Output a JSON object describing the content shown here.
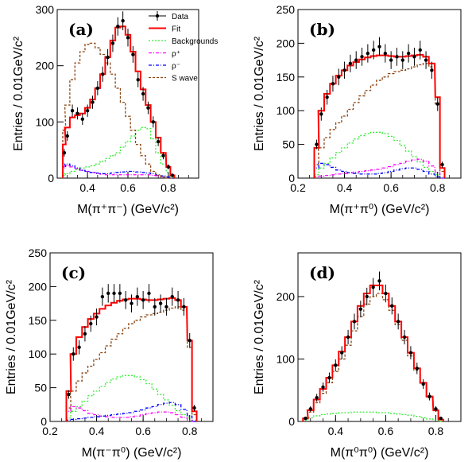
{
  "colors": {
    "data": "#000000",
    "fit": "#ff0000",
    "backgrounds": "#33ee33",
    "rho_plus": "#ff00ff",
    "rho_minus": "#0000ff",
    "s_wave": "#8b4513"
  },
  "chart_data": [
    {
      "type": "line",
      "panel_label": "(a)",
      "xlabel": "M(π⁺π⁻) (GeV/c²)",
      "ylabel": "Entries / 0.01GeV/c²",
      "xlim": [
        0.25,
        0.95
      ],
      "ylim": [
        0,
        300
      ],
      "xticks": [
        0.4,
        0.6,
        0.8
      ],
      "yticks": [
        0,
        100,
        200,
        300
      ],
      "grid": false,
      "legend": {
        "position": "top-right",
        "entries": [
          "Data",
          "Fit",
          "Backgrounds",
          "ρ⁺",
          "ρ⁻",
          "S wave"
        ]
      },
      "x": [
        0.285,
        0.3,
        0.325,
        0.35,
        0.375,
        0.4,
        0.425,
        0.45,
        0.475,
        0.5,
        0.525,
        0.55,
        0.575,
        0.6,
        0.625,
        0.65,
        0.675,
        0.7,
        0.725,
        0.75,
        0.775,
        0.8,
        0.82
      ],
      "series": [
        {
          "name": "Data",
          "values": [
            45,
            75,
            120,
            115,
            105,
            120,
            135,
            160,
            185,
            215,
            240,
            270,
            280,
            250,
            220,
            175,
            150,
            125,
            100,
            65,
            40,
            20,
            5
          ]
        },
        {
          "name": "Fit",
          "values": [
            60,
            90,
            108,
            112,
            115,
            125,
            140,
            160,
            185,
            215,
            245,
            268,
            270,
            255,
            225,
            190,
            158,
            130,
            100,
            72,
            45,
            20,
            5
          ]
        },
        {
          "name": "Backgrounds",
          "values": [
            5,
            8,
            12,
            15,
            18,
            20,
            22,
            25,
            30,
            35,
            40,
            45,
            55,
            65,
            75,
            85,
            90,
            88,
            70,
            45,
            25,
            10,
            2
          ]
        },
        {
          "name": "ρ⁺",
          "values": [
            18,
            22,
            20,
            17,
            14,
            12,
            10,
            8,
            7,
            6,
            6,
            6,
            6,
            6,
            6,
            6,
            6,
            6,
            5,
            4,
            3,
            2,
            0
          ]
        },
        {
          "name": "ρ⁻",
          "values": [
            20,
            25,
            22,
            18,
            14,
            12,
            10,
            9,
            8,
            8,
            9,
            10,
            11,
            12,
            12,
            11,
            10,
            9,
            8,
            6,
            4,
            2,
            0
          ]
        },
        {
          "name": "S wave",
          "values": [
            85,
            130,
            175,
            205,
            225,
            238,
            240,
            232,
            220,
            205,
            185,
            160,
            135,
            110,
            85,
            60,
            40,
            25,
            12,
            5,
            2,
            0,
            0
          ]
        }
      ]
    },
    {
      "type": "line",
      "panel_label": "(b)",
      "xlabel": "M(π⁺π⁰) (GeV/c²)",
      "ylabel": "Entries / 0.01GeV/c²",
      "xlim": [
        0.2,
        0.9
      ],
      "ylim": [
        0,
        250
      ],
      "xticks": [
        0.2,
        0.4,
        0.6,
        0.8
      ],
      "yticks": [
        0,
        50,
        100,
        150,
        200,
        250
      ],
      "grid": false,
      "x": [
        0.28,
        0.3,
        0.325,
        0.35,
        0.375,
        0.4,
        0.425,
        0.45,
        0.475,
        0.5,
        0.525,
        0.55,
        0.575,
        0.6,
        0.625,
        0.65,
        0.675,
        0.7,
        0.725,
        0.75,
        0.775,
        0.8,
        0.82
      ],
      "series": [
        {
          "name": "Data",
          "values": [
            50,
            95,
            120,
            140,
            150,
            160,
            170,
            175,
            180,
            185,
            190,
            195,
            185,
            175,
            180,
            175,
            185,
            180,
            190,
            175,
            160,
            110,
            20
          ]
        },
        {
          "name": "Fit",
          "values": [
            45,
            100,
            125,
            140,
            152,
            160,
            167,
            172,
            176,
            179,
            181,
            182,
            182,
            181,
            180,
            180,
            181,
            182,
            183,
            180,
            170,
            120,
            15
          ]
        },
        {
          "name": "Backgrounds",
          "values": [
            5,
            15,
            22,
            30,
            38,
            45,
            52,
            58,
            63,
            66,
            68,
            68,
            66,
            62,
            56,
            48,
            40,
            32,
            24,
            16,
            10,
            5,
            1
          ]
        },
        {
          "name": "ρ⁺",
          "values": [
            2,
            3,
            4,
            5,
            6,
            7,
            8,
            9,
            10,
            11,
            12,
            13,
            15,
            17,
            20,
            22,
            25,
            27,
            28,
            25,
            18,
            8,
            0
          ]
        },
        {
          "name": "ρ⁻",
          "values": [
            15,
            22,
            20,
            16,
            12,
            10,
            8,
            7,
            6,
            6,
            6,
            7,
            8,
            10,
            12,
            14,
            15,
            15,
            13,
            10,
            6,
            2,
            0
          ]
        },
        {
          "name": "S wave",
          "values": [
            20,
            45,
            60,
            72,
            82,
            92,
            102,
            112,
            122,
            130,
            138,
            145,
            150,
            155,
            158,
            160,
            162,
            165,
            168,
            170,
            165,
            110,
            10
          ]
        }
      ]
    },
    {
      "type": "line",
      "panel_label": "(c)",
      "xlabel": "M(π⁻π⁰) (GeV/c²)",
      "ylabel": "Entries / 0.01GeV/c²",
      "xlim": [
        0.2,
        0.9
      ],
      "ylim": [
        0,
        250
      ],
      "xticks": [
        0.2,
        0.4,
        0.6,
        0.8
      ],
      "yticks": [
        0,
        50,
        100,
        150,
        200,
        250
      ],
      "grid": false,
      "x": [
        0.28,
        0.3,
        0.325,
        0.35,
        0.375,
        0.4,
        0.425,
        0.45,
        0.475,
        0.5,
        0.525,
        0.55,
        0.575,
        0.6,
        0.625,
        0.65,
        0.675,
        0.7,
        0.725,
        0.75,
        0.775,
        0.8,
        0.82
      ],
      "series": [
        {
          "name": "Data",
          "values": [
            40,
            100,
            110,
            130,
            145,
            155,
            185,
            190,
            190,
            190,
            180,
            175,
            185,
            180,
            190,
            170,
            175,
            170,
            185,
            180,
            170,
            120,
            20
          ]
        },
        {
          "name": "Fit",
          "values": [
            45,
            100,
            125,
            140,
            152,
            160,
            167,
            172,
            176,
            179,
            181,
            182,
            182,
            181,
            180,
            180,
            181,
            182,
            183,
            180,
            170,
            120,
            15
          ]
        },
        {
          "name": "Backgrounds",
          "values": [
            5,
            15,
            22,
            30,
            38,
            45,
            52,
            58,
            63,
            66,
            68,
            68,
            66,
            62,
            56,
            48,
            40,
            32,
            24,
            16,
            10,
            5,
            1
          ]
        },
        {
          "name": "ρ⁺",
          "values": [
            15,
            22,
            20,
            16,
            12,
            10,
            8,
            7,
            6,
            6,
            6,
            7,
            8,
            10,
            12,
            13,
            14,
            14,
            13,
            10,
            6,
            2,
            0
          ]
        },
        {
          "name": "ρ⁻",
          "values": [
            2,
            3,
            4,
            5,
            6,
            7,
            8,
            9,
            10,
            11,
            12,
            13,
            15,
            17,
            20,
            22,
            25,
            27,
            28,
            25,
            18,
            8,
            0
          ]
        },
        {
          "name": "S wave",
          "values": [
            20,
            45,
            60,
            72,
            82,
            92,
            102,
            112,
            122,
            130,
            138,
            145,
            150,
            155,
            158,
            160,
            162,
            165,
            168,
            170,
            165,
            110,
            10
          ]
        }
      ]
    },
    {
      "type": "line",
      "panel_label": "(d)",
      "xlabel": "M(π⁰π⁰) (GeV/c²)",
      "ylabel": "Entries / 0.01GeV/c²",
      "xlim": [
        0.25,
        0.9
      ],
      "ylim": [
        0,
        270
      ],
      "xticks": [
        0.4,
        0.6,
        0.8
      ],
      "yticks": [
        0,
        100,
        200
      ],
      "grid": false,
      "x": [
        0.28,
        0.3,
        0.325,
        0.35,
        0.375,
        0.4,
        0.425,
        0.45,
        0.475,
        0.5,
        0.525,
        0.55,
        0.575,
        0.6,
        0.625,
        0.65,
        0.675,
        0.7,
        0.725,
        0.75,
        0.775,
        0.8,
        0.82
      ],
      "series": [
        {
          "name": "Data",
          "values": [
            5,
            20,
            38,
            55,
            70,
            90,
            110,
            135,
            160,
            180,
            200,
            215,
            225,
            205,
            185,
            160,
            135,
            110,
            85,
            60,
            40,
            20,
            5
          ]
        },
        {
          "name": "Fit",
          "values": [
            5,
            18,
            35,
            52,
            70,
            90,
            112,
            135,
            160,
            185,
            205,
            218,
            218,
            205,
            185,
            160,
            135,
            110,
            85,
            62,
            40,
            18,
            3
          ]
        },
        {
          "name": "Backgrounds",
          "values": [
            2,
            6,
            9,
            11,
            12,
            13,
            14,
            14,
            15,
            15,
            15,
            15,
            14,
            14,
            13,
            12,
            11,
            10,
            8,
            6,
            4,
            2,
            0
          ]
        },
        {
          "name": "S wave",
          "values": [
            4,
            15,
            30,
            45,
            62,
            80,
            100,
            122,
            145,
            168,
            188,
            200,
            205,
            195,
            178,
            155,
            130,
            105,
            82,
            60,
            38,
            17,
            3
          ]
        }
      ]
    }
  ]
}
